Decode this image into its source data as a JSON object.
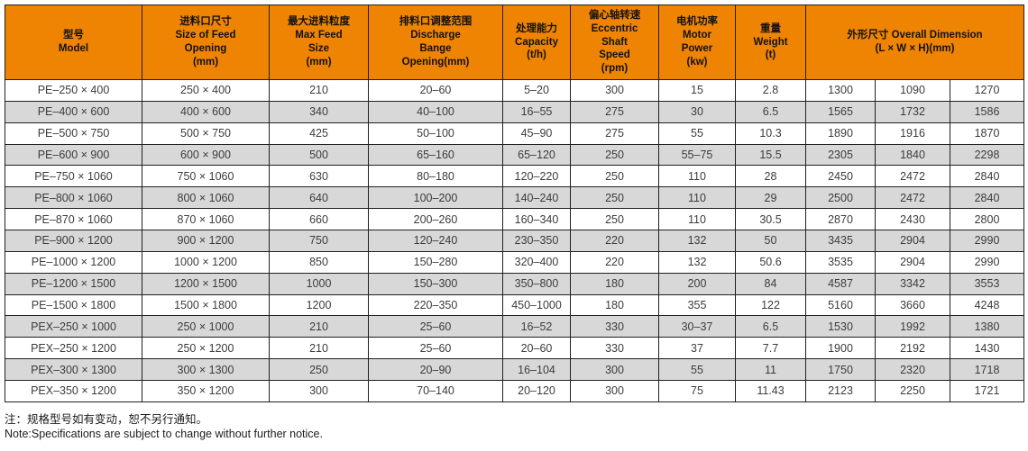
{
  "colors": {
    "header_bg": "#ef8402",
    "stripe": "#d8d8d8",
    "border": "#1f1f1f",
    "cell_text": "#3c3c3c"
  },
  "table": {
    "header": [
      {
        "lines": [
          "型号",
          "Model"
        ],
        "colspan": 1
      },
      {
        "lines": [
          "进料口尺寸",
          "Size of Feed",
          "Opening",
          "(mm)"
        ],
        "colspan": 1
      },
      {
        "lines": [
          "最大进料粒度",
          "Max Feed",
          "Size",
          "(mm)"
        ],
        "colspan": 1
      },
      {
        "lines": [
          "排料口调整范围",
          "Discharge",
          "Bange",
          "Opening(mm)"
        ],
        "colspan": 1
      },
      {
        "lines": [
          "处理能力",
          "Capacity",
          "(t/h)"
        ],
        "colspan": 1
      },
      {
        "lines": [
          "偏心轴转速",
          "Eccentric",
          "Shaft",
          "Speed",
          "(rpm)"
        ],
        "colspan": 1
      },
      {
        "lines": [
          "电机功率",
          "Motor",
          "Power",
          "(kw)"
        ],
        "colspan": 1
      },
      {
        "lines": [
          "重量",
          "Weight",
          "(t)"
        ],
        "colspan": 1
      },
      {
        "lines": [
          "外形尺寸 Overall Dimension",
          "(L × W × H)(mm)"
        ],
        "colspan": 3
      }
    ],
    "rows": [
      [
        "PE–250 × 400",
        "250 × 400",
        "210",
        "20–60",
        "5–20",
        "300",
        "15",
        "2.8",
        "1300",
        "1090",
        "1270"
      ],
      [
        "PE–400 × 600",
        "400 × 600",
        "340",
        "40–100",
        "16–55",
        "275",
        "30",
        "6.5",
        "1565",
        "1732",
        "1586"
      ],
      [
        "PE–500 × 750",
        "500 × 750",
        "425",
        "50–100",
        "45–90",
        "275",
        "55",
        "10.3",
        "1890",
        "1916",
        "1870"
      ],
      [
        "PE–600 × 900",
        "600 × 900",
        "500",
        "65–160",
        "65–120",
        "250",
        "55–75",
        "15.5",
        "2305",
        "1840",
        "2298"
      ],
      [
        "PE–750 × 1060",
        "750 × 1060",
        "630",
        "80–180",
        "120–220",
        "250",
        "110",
        "28",
        "2450",
        "2472",
        "2840"
      ],
      [
        "PE–800 × 1060",
        "800 × 1060",
        "640",
        "100–200",
        "140–240",
        "250",
        "110",
        "29",
        "2500",
        "2472",
        "2840"
      ],
      [
        "PE–870 × 1060",
        "870 × 1060",
        "660",
        "200–260",
        "160–340",
        "250",
        "110",
        "30.5",
        "2870",
        "2430",
        "2800"
      ],
      [
        "PE–900 × 1200",
        "900 × 1200",
        "750",
        "120–240",
        "230–350",
        "220",
        "132",
        "50",
        "3435",
        "2904",
        "2990"
      ],
      [
        "PE–1000 × 1200",
        "1000 × 1200",
        "850",
        "150–280",
        "320–400",
        "220",
        "132",
        "50.6",
        "3535",
        "2904",
        "2990"
      ],
      [
        "PE–1200 × 1500",
        "1200 × 1500",
        "1000",
        "150–300",
        "350–800",
        "180",
        "200",
        "84",
        "4587",
        "3342",
        "3553"
      ],
      [
        "PE–1500 × 1800",
        "1500 × 1800",
        "1200",
        "220–350",
        "450–1000",
        "180",
        "355",
        "122",
        "5160",
        "3660",
        "4248"
      ],
      [
        "PEX–250 × 1000",
        "250 × 1000",
        "210",
        "25–60",
        "16–52",
        "330",
        "30–37",
        "6.5",
        "1530",
        "1992",
        "1380"
      ],
      [
        "PEX–250 × 1200",
        "250 × 1200",
        "210",
        "25–60",
        "20–60",
        "330",
        "37",
        "7.7",
        "1900",
        "2192",
        "1430"
      ],
      [
        "PEX–300 × 1300",
        "300 × 1300",
        "250",
        "20–90",
        "16–104",
        "300",
        "55",
        "11",
        "1750",
        "2320",
        "1718"
      ],
      [
        "PEX–350 × 1200",
        "350 × 1200",
        "300",
        "70–140",
        "20–120",
        "300",
        "75",
        "11.43",
        "2123",
        "2250",
        "1721"
      ]
    ]
  },
  "note": {
    "zh": "注：规格型号如有变动，恕不另行通知。",
    "en": "Note:Specifications are subject to change without further notice."
  }
}
